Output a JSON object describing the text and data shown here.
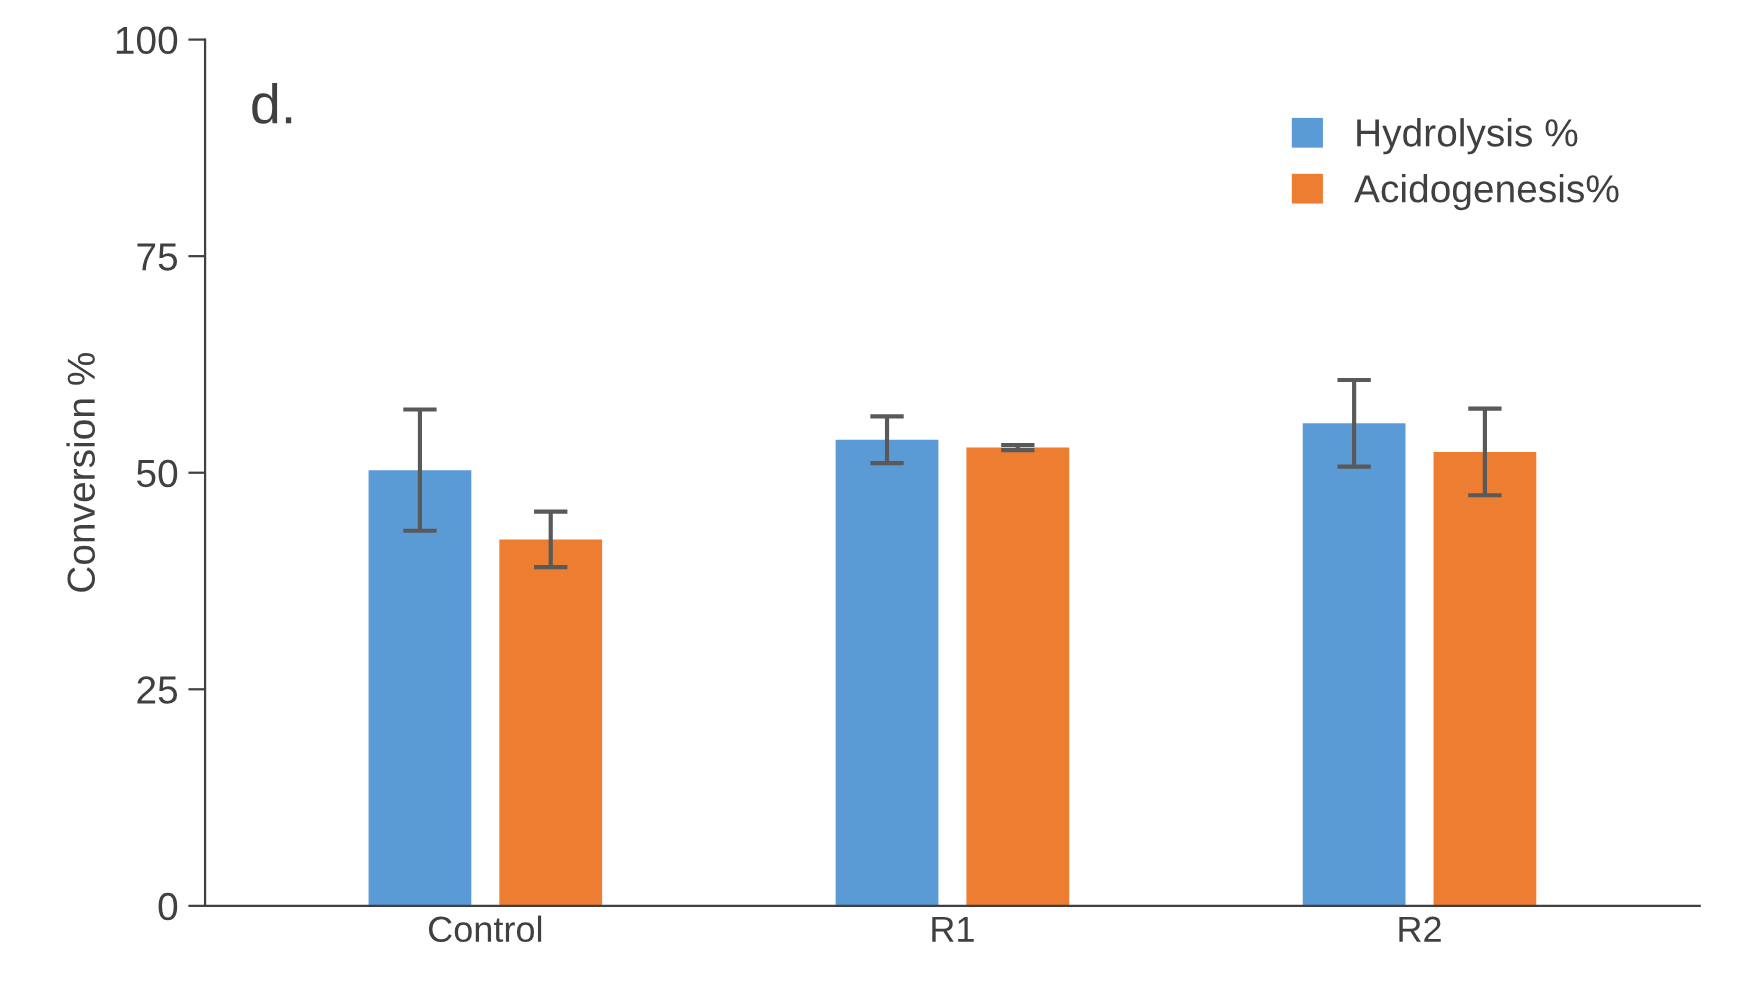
{
  "chart_data": {
    "type": "bar",
    "ylabel": "Conversion %",
    "annotations": [
      "d."
    ],
    "categories": [
      "Control",
      "R1",
      "R2"
    ],
    "series": [
      {
        "name": "Hydrolysis %",
        "color": "#5b9bd5",
        "values": [
          50.3,
          53.8,
          55.7
        ],
        "errors": [
          7,
          2.7,
          5
        ]
      },
      {
        "name": "Acidogenesis%",
        "color": "#ed7d31",
        "values": [
          42.3,
          52.9,
          52.4
        ],
        "errors": [
          3.2,
          0.3,
          5
        ]
      }
    ],
    "ylim": [
      0,
      100
    ],
    "yticks": [
      0,
      25,
      50,
      75,
      100
    ],
    "grid": false,
    "legend": "top right"
  }
}
